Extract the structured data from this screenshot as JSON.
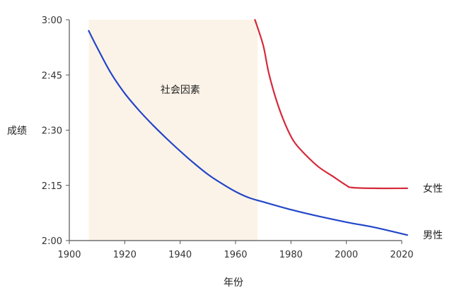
{
  "chart_data": {
    "type": "line",
    "title": "",
    "xlabel": "年份",
    "ylabel": "成绩",
    "xlim": [
      1900,
      2020
    ],
    "ylim": [
      120,
      180
    ],
    "x_ticks": [
      1900,
      1920,
      1940,
      1960,
      1980,
      2000,
      2020
    ],
    "x_tick_labels": [
      "1900",
      "1920",
      "1940",
      "1960",
      "1980",
      "2000",
      "2020"
    ],
    "y_ticks": [
      120,
      135,
      150,
      165,
      180
    ],
    "y_tick_labels": [
      "2:00",
      "2:15",
      "2:30",
      "2:45",
      "3:00"
    ],
    "y_unit_note": "minutes (displayed as h:mm)",
    "grid": false,
    "legend": "none (series labeled at line ends, right)",
    "series": [
      {
        "name": "男性",
        "color": "#2346c8",
        "points": [
          [
            1907,
            177.0
          ],
          [
            1910,
            172.5
          ],
          [
            1915,
            165.5
          ],
          [
            1920,
            160.0
          ],
          [
            1925,
            155.5
          ],
          [
            1930,
            151.5
          ],
          [
            1935,
            147.8
          ],
          [
            1940,
            144.3
          ],
          [
            1945,
            141.0
          ],
          [
            1950,
            138.0
          ],
          [
            1955,
            135.5
          ],
          [
            1960,
            133.3
          ],
          [
            1965,
            131.6
          ],
          [
            1970,
            130.5
          ],
          [
            1980,
            128.4
          ],
          [
            1990,
            126.6
          ],
          [
            2000,
            125.0
          ],
          [
            2010,
            123.6
          ],
          [
            2022,
            121.5
          ]
        ]
      },
      {
        "name": "女性",
        "color": "#d42a3a",
        "points": [
          [
            1967,
            180.0
          ],
          [
            1970,
            173.0
          ],
          [
            1972,
            165.5
          ],
          [
            1975,
            157.5
          ],
          [
            1978,
            151.5
          ],
          [
            1981,
            147.0
          ],
          [
            1985,
            143.5
          ],
          [
            1990,
            140.0
          ],
          [
            1995,
            137.5
          ],
          [
            2000,
            135.0
          ],
          [
            2002,
            134.4
          ],
          [
            2010,
            134.2
          ],
          [
            2022,
            134.2
          ]
        ]
      }
    ],
    "shaded_region": {
      "label": "社会因素",
      "color": "#fcf3e8",
      "x_range": [
        1907,
        1968
      ],
      "y_range": [
        120,
        180
      ]
    }
  }
}
